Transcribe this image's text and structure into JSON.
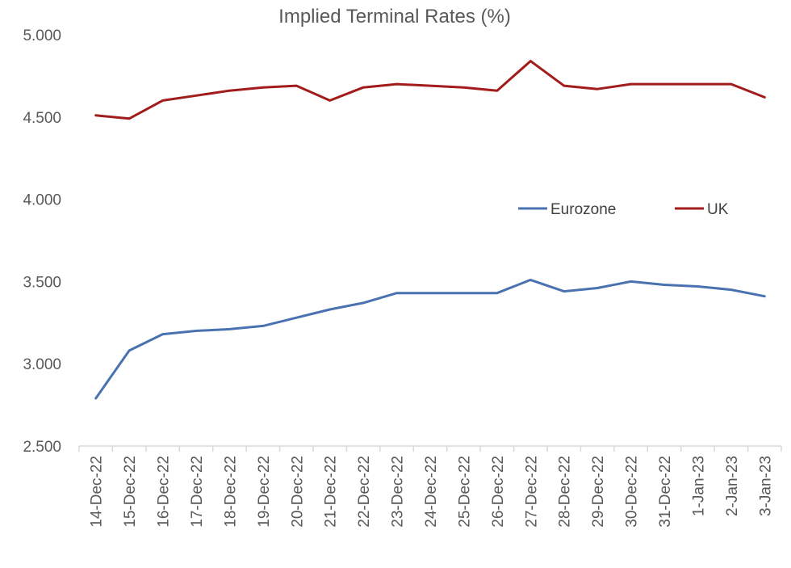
{
  "chart_data": {
    "type": "line",
    "title": "Implied Terminal Rates (%)",
    "xlabel": "",
    "ylabel": "",
    "ylim": [
      2.5,
      5.0
    ],
    "yticks": [
      "2.500",
      "3.000",
      "3.500",
      "4.000",
      "4.500",
      "5.000"
    ],
    "ytick_values": [
      2.5,
      3.0,
      3.5,
      4.0,
      4.5,
      5.0
    ],
    "categories": [
      "14-Dec-22",
      "15-Dec-22",
      "16-Dec-22",
      "17-Dec-22",
      "18-Dec-22",
      "19-Dec-22",
      "20-Dec-22",
      "21-Dec-22",
      "22-Dec-22",
      "23-Dec-22",
      "24-Dec-22",
      "25-Dec-22",
      "26-Dec-22",
      "27-Dec-22",
      "28-Dec-22",
      "29-Dec-22",
      "30-Dec-22",
      "31-Dec-22",
      "1-Jan-23",
      "2-Jan-23",
      "3-Jan-23"
    ],
    "grid": false,
    "legend_position": "right-middle",
    "series": [
      {
        "name": "Eurozone",
        "color": "#4a72b0",
        "values": [
          2.79,
          3.08,
          3.18,
          3.2,
          3.21,
          3.23,
          3.28,
          3.33,
          3.37,
          3.43,
          3.43,
          3.43,
          3.43,
          3.51,
          3.44,
          3.46,
          3.5,
          3.48,
          3.47,
          3.45,
          3.41
        ]
      },
      {
        "name": "UK",
        "color": "#a31c1c",
        "values": [
          4.51,
          4.49,
          4.6,
          4.63,
          4.66,
          4.68,
          4.69,
          4.6,
          4.68,
          4.7,
          4.69,
          4.68,
          4.66,
          4.84,
          4.69,
          4.67,
          4.7,
          4.7,
          4.7,
          4.7,
          4.62
        ]
      }
    ]
  }
}
